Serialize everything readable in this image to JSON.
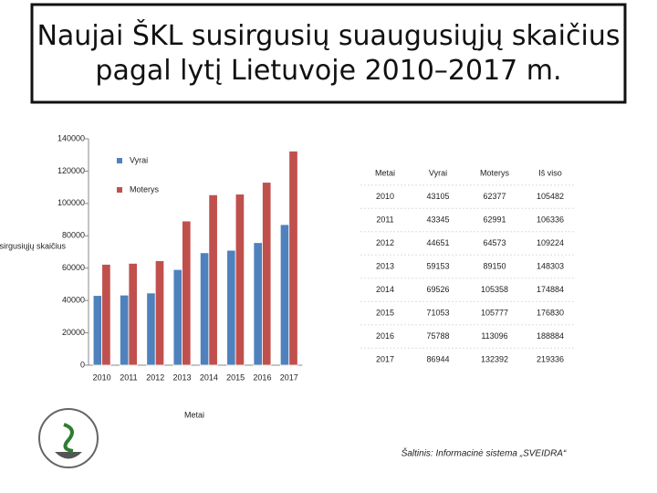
{
  "chart_data": {
    "type": "bar",
    "title": "Naujai ŠKL susirgusių suaugusiųjų skaičius pagal lytį Lietuvoje 2010–2017 m.",
    "y_label": "Susirgusiųjų skaičius",
    "x_label": "Metai",
    "categories": [
      "2010",
      "2011",
      "2012",
      "2013",
      "2014",
      "2015",
      "2016",
      "2017"
    ],
    "series": [
      {
        "name": "Vyrai",
        "color": "#4f81bd",
        "values": [
          43105,
          43345,
          44651,
          59153,
          69526,
          71053,
          75788,
          86944
        ]
      },
      {
        "name": "Moterys",
        "color": "#c0504d",
        "values": [
          62377,
          62991,
          64573,
          89150,
          105358,
          105777,
          113096,
          132392
        ]
      }
    ],
    "ylim": [
      0,
      140000
    ],
    "yticks": [
      0,
      20000,
      40000,
      60000,
      80000,
      100000,
      120000,
      140000
    ]
  },
  "table": {
    "header": [
      "Metai",
      "Vyrai",
      "Moterys",
      "Iš viso"
    ],
    "rows": [
      [
        2010,
        43105,
        62377,
        105482
      ],
      [
        2011,
        43345,
        62991,
        106336
      ],
      [
        2012,
        44651,
        64573,
        109224
      ],
      [
        2013,
        59153,
        89150,
        148303
      ],
      [
        2014,
        69526,
        105358,
        174884
      ],
      [
        2015,
        71053,
        105777,
        176830
      ],
      [
        2016,
        75788,
        113096,
        188884
      ],
      [
        2017,
        86944,
        132392,
        219336
      ]
    ]
  },
  "source": "Šaltinis: Informacinė sistema „SVEIDRA“"
}
